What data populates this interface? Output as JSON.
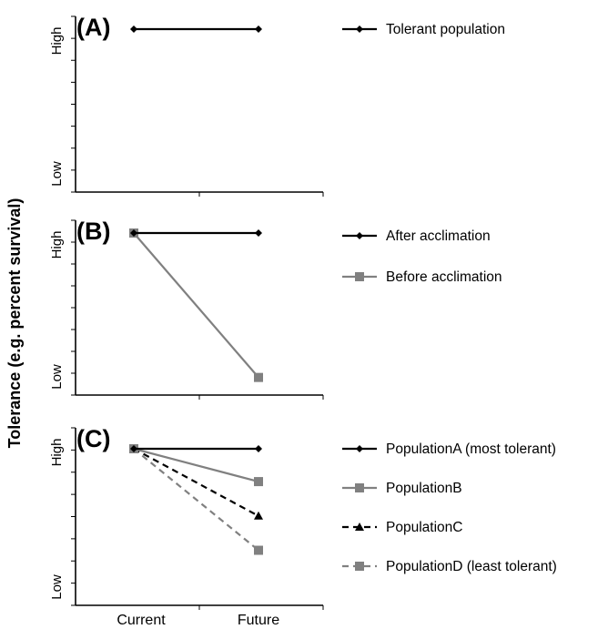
{
  "figure": {
    "ylabel": "Tolerance (e.g. percent survival)",
    "xlabel": "",
    "x_ticks": [
      "Current",
      "Future"
    ]
  },
  "chart_data": [
    {
      "type": "line",
      "panel_label": "(A)",
      "categories": [
        "Current",
        "Future"
      ],
      "y_ticks": [
        "Low",
        "High"
      ],
      "ylim": [
        0,
        1
      ],
      "series": [
        {
          "name": "Tolerant population",
          "values": [
            1.0,
            1.0
          ],
          "color": "#000000",
          "marker": "diamond",
          "dash": "solid"
        }
      ]
    },
    {
      "type": "line",
      "panel_label": "(B)",
      "categories": [
        "Current",
        "Future"
      ],
      "y_ticks": [
        "Low",
        "High"
      ],
      "ylim": [
        0,
        1
      ],
      "series": [
        {
          "name": "After acclimation",
          "values": [
            1.0,
            1.0
          ],
          "color": "#000000",
          "marker": "diamond",
          "dash": "solid"
        },
        {
          "name": "Before acclimation",
          "values": [
            1.0,
            0.05
          ],
          "color": "#808080",
          "marker": "square",
          "dash": "solid"
        }
      ]
    },
    {
      "type": "line",
      "panel_label": "(C)",
      "categories": [
        "Current",
        "Future"
      ],
      "y_ticks": [
        "Low",
        "High"
      ],
      "ylim": [
        0,
        1
      ],
      "series": [
        {
          "name": "PopulationA (most tolerant)",
          "values": [
            1.0,
            1.0
          ],
          "color": "#000000",
          "marker": "diamond",
          "dash": "solid"
        },
        {
          "name": "PopulationB",
          "values": [
            1.0,
            0.78
          ],
          "color": "#808080",
          "marker": "square",
          "dash": "solid"
        },
        {
          "name": "PopulationC",
          "values": [
            1.0,
            0.55
          ],
          "color": "#000000",
          "marker": "triangle",
          "dash": "dashed"
        },
        {
          "name": "PopulationD (least tolerant)",
          "values": [
            1.0,
            0.32
          ],
          "color": "#808080",
          "marker": "square",
          "dash": "dashed"
        }
      ]
    }
  ]
}
